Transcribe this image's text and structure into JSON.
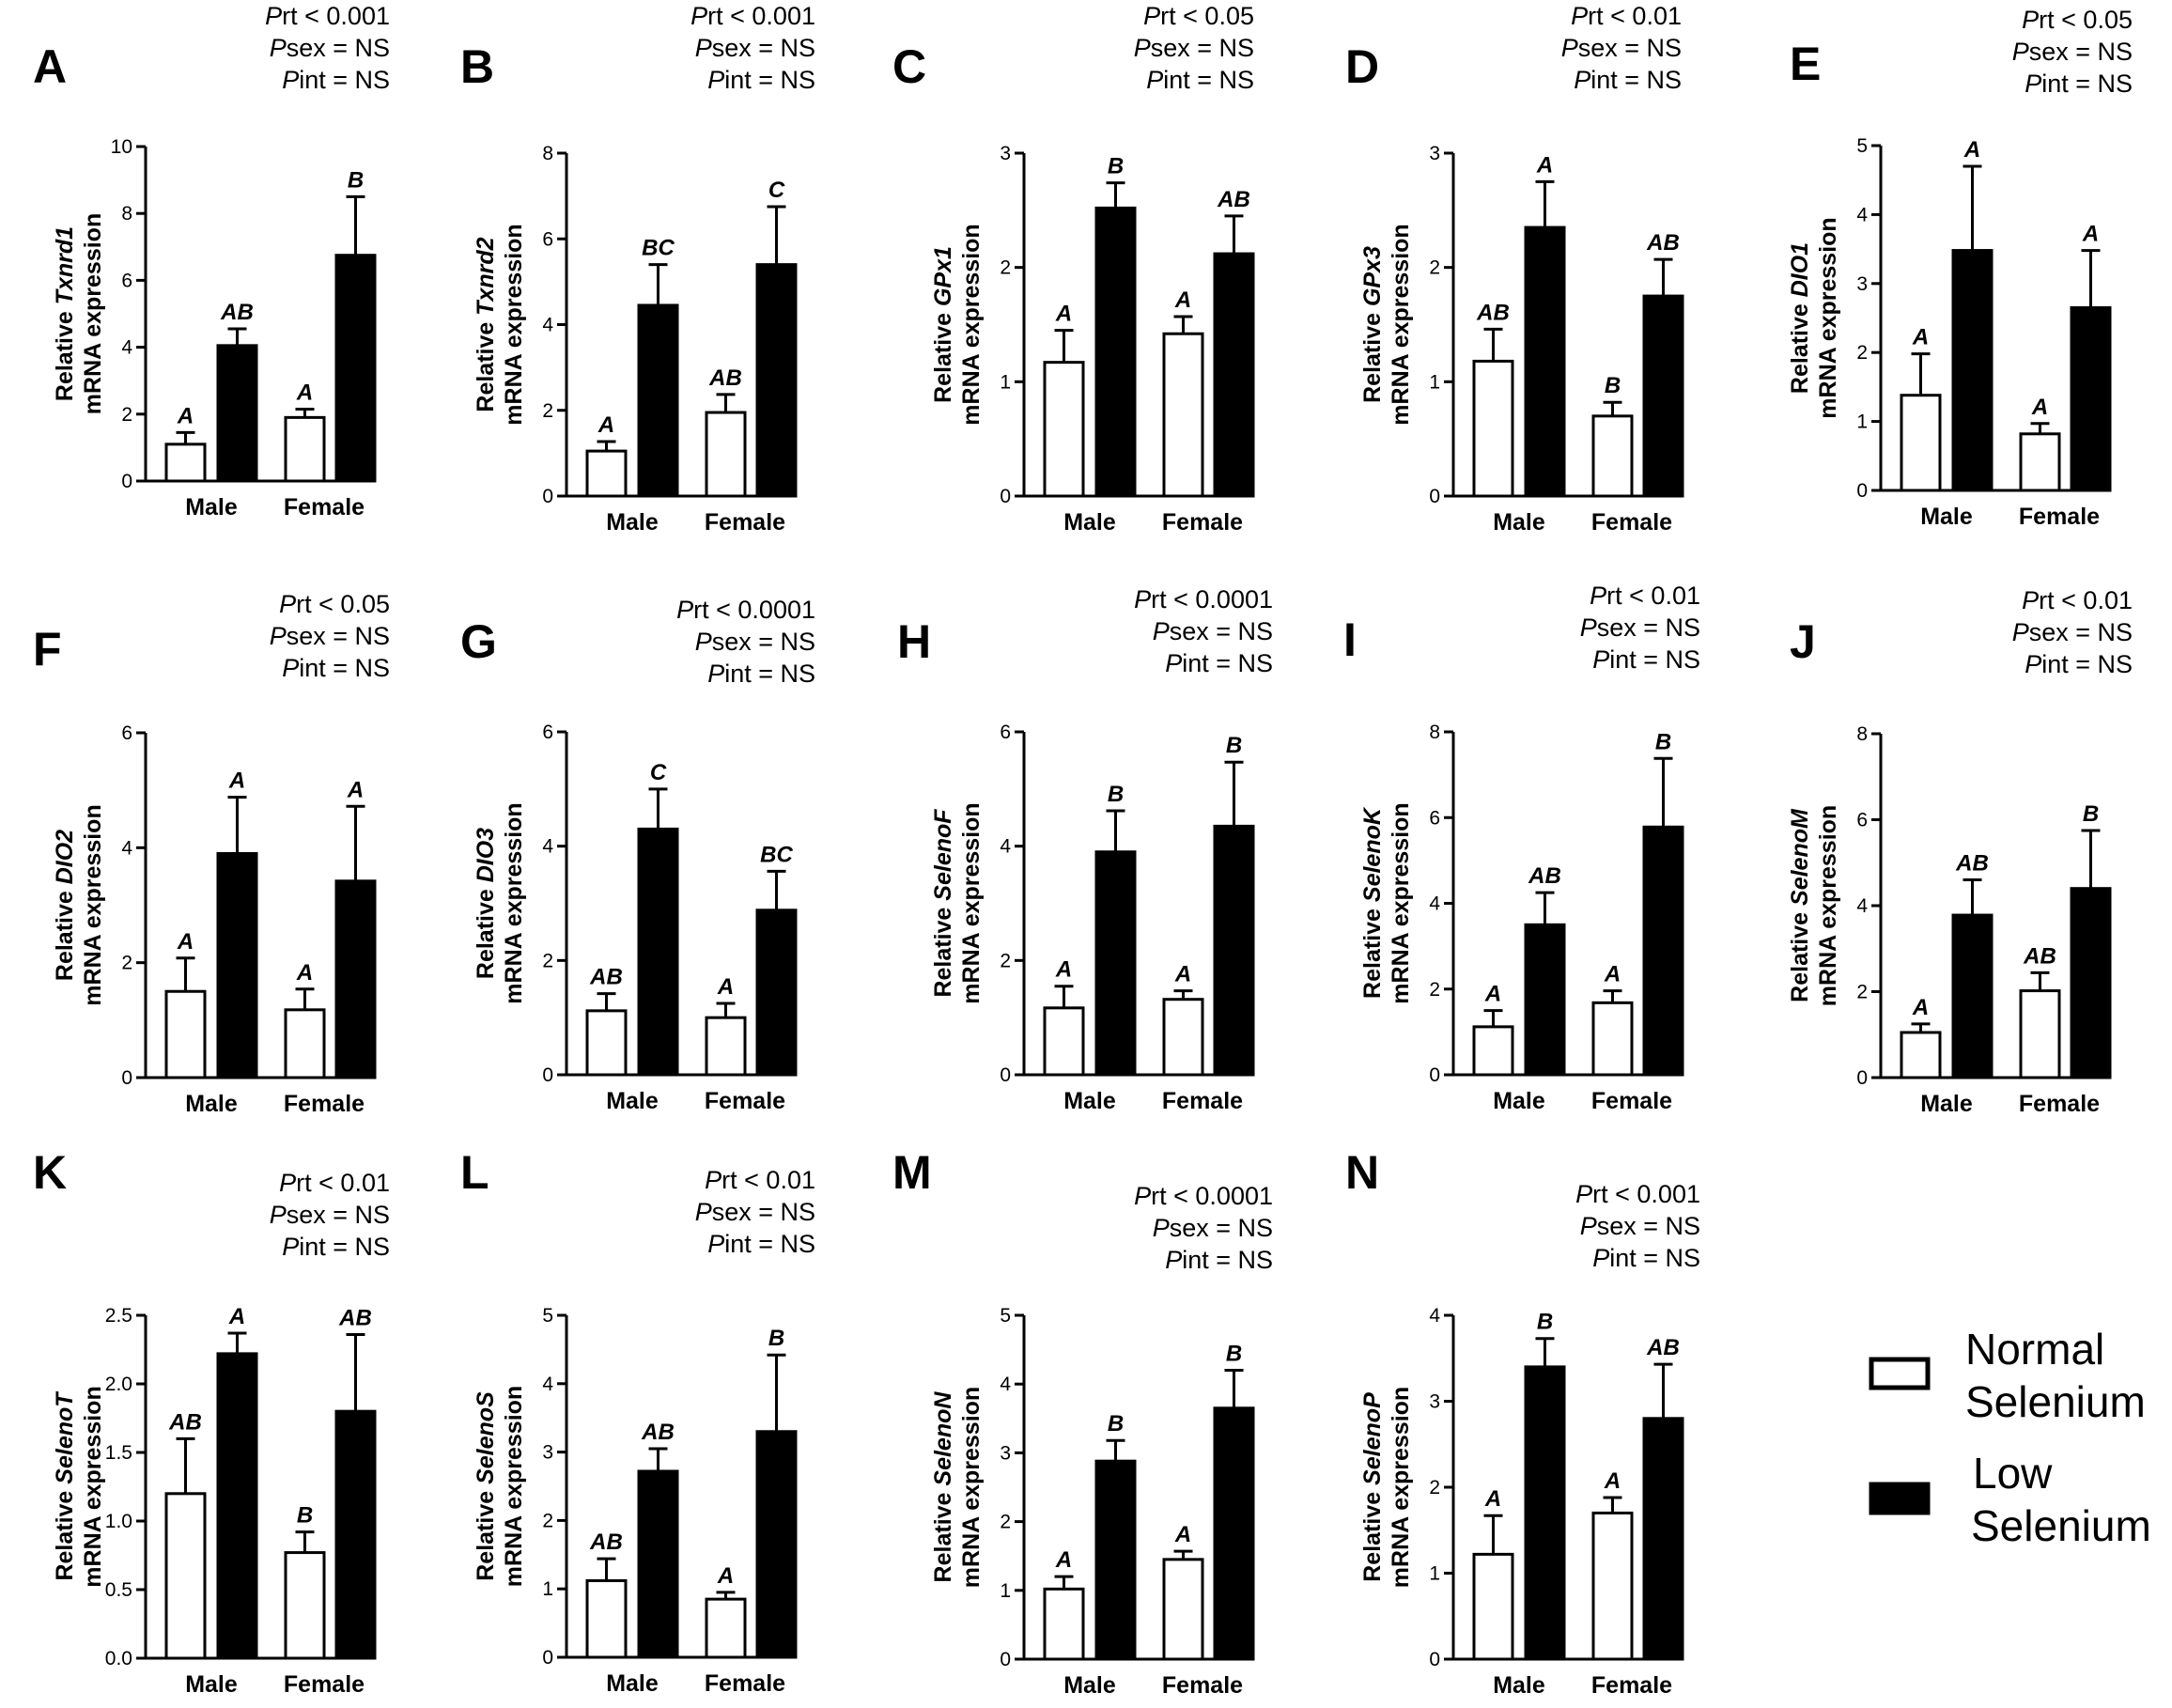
{
  "figure": {
    "legend": [
      {
        "label_line1": "Normal",
        "label_line2": "Selenium",
        "fill": "#ffffff"
      },
      {
        "label_line1": "Low",
        "label_line2": "Selenium",
        "fill": "#000000"
      }
    ],
    "colors": {
      "normal": "#ffffff",
      "low": "#000000",
      "stroke": "#000000"
    }
  },
  "chart_data": [
    {
      "type": "bar",
      "panel": "A",
      "gene": "Txnrd1",
      "ylabel_prefix": "Relative ",
      "ylabel_line2": "mRNA expression",
      "categories": [
        "Male",
        "Female"
      ],
      "ylim": [
        0,
        10
      ],
      "yticks": [
        "0",
        "2",
        "4",
        "6",
        "8",
        "10"
      ],
      "series": [
        {
          "name": "Normal Selenium",
          "values": [
            1.1,
            1.9
          ],
          "errors": [
            0.35,
            0.25
          ],
          "labels": [
            "A",
            "A"
          ]
        },
        {
          "name": "Low Selenium",
          "values": [
            4.05,
            6.75
          ],
          "errors": [
            0.5,
            1.75
          ],
          "labels": [
            "AB",
            "B"
          ]
        }
      ],
      "stats": {
        "trt_value": "rt < 0.001",
        "sex_value": "sex = NS",
        "int_value": "int = NS"
      }
    },
    {
      "type": "bar",
      "panel": "B",
      "gene": "Txnrd2",
      "ylabel_prefix": "Relative ",
      "ylabel_line2": "mRNA expression",
      "categories": [
        "Male",
        "Female"
      ],
      "ylim": [
        0,
        8
      ],
      "yticks": [
        "0",
        "2",
        "4",
        "6",
        "8"
      ],
      "series": [
        {
          "name": "Normal Selenium",
          "values": [
            1.05,
            1.95
          ],
          "errors": [
            0.22,
            0.42
          ],
          "labels": [
            "A",
            "AB"
          ]
        },
        {
          "name": "Low Selenium",
          "values": [
            4.45,
            5.4
          ],
          "errors": [
            0.95,
            1.35
          ],
          "labels": [
            "BC",
            "C"
          ]
        }
      ],
      "stats": {
        "trt_value": "rt < 0.001",
        "sex_value": "sex = NS",
        "int_value": "int = NS"
      }
    },
    {
      "type": "bar",
      "panel": "C",
      "gene": "GPx1",
      "ylabel_prefix": "Relative ",
      "ylabel_line2": "mRNA expression",
      "categories": [
        "Male",
        "Female"
      ],
      "ylim": [
        0,
        3
      ],
      "yticks": [
        "0",
        "1",
        "2",
        "3"
      ],
      "series": [
        {
          "name": "Normal Selenium",
          "values": [
            1.17,
            1.42
          ],
          "errors": [
            0.28,
            0.15
          ],
          "labels": [
            "A",
            "A"
          ]
        },
        {
          "name": "Low Selenium",
          "values": [
            2.52,
            2.12
          ],
          "errors": [
            0.22,
            0.33
          ],
          "labels": [
            "B",
            "AB"
          ]
        }
      ],
      "stats": {
        "trt_value": "rt < 0.05",
        "sex_value": "sex = NS",
        "int_value": "int = NS"
      }
    },
    {
      "type": "bar",
      "panel": "D",
      "gene": "GPx3",
      "ylabel_prefix": "Relative ",
      "ylabel_line2": "mRNA expression",
      "categories": [
        "Male",
        "Female"
      ],
      "ylim": [
        0,
        3
      ],
      "yticks": [
        "0",
        "1",
        "2",
        "3"
      ],
      "series": [
        {
          "name": "Normal Selenium",
          "values": [
            1.18,
            0.7
          ],
          "errors": [
            0.28,
            0.12
          ],
          "labels": [
            "AB",
            "B"
          ]
        },
        {
          "name": "Low Selenium",
          "values": [
            2.35,
            1.75
          ],
          "errors": [
            0.4,
            0.32
          ],
          "labels": [
            "A",
            "AB"
          ]
        }
      ],
      "stats": {
        "trt_value": "rt < 0.01",
        "sex_value": "sex = NS",
        "int_value": "int = NS"
      }
    },
    {
      "type": "bar",
      "panel": "E",
      "gene": "DIO1",
      "ylabel_prefix": "Relative ",
      "ylabel_line2": "mRNA expression",
      "categories": [
        "Male",
        "Female"
      ],
      "ylim": [
        0,
        5
      ],
      "yticks": [
        "0",
        "1",
        "2",
        "3",
        "4",
        "5"
      ],
      "series": [
        {
          "name": "Normal Selenium",
          "values": [
            1.38,
            0.82
          ],
          "errors": [
            0.6,
            0.15
          ],
          "labels": [
            "A",
            "A"
          ]
        },
        {
          "name": "Low Selenium",
          "values": [
            3.48,
            2.65
          ],
          "errors": [
            1.22,
            0.83
          ],
          "labels": [
            "A",
            "A"
          ]
        }
      ],
      "stats": {
        "trt_value": "rt < 0.05",
        "sex_value": "sex = NS",
        "int_value": "int = NS"
      }
    },
    {
      "type": "bar",
      "panel": "F",
      "gene": "DIO2",
      "ylabel_prefix": "Relative ",
      "ylabel_line2": "mRNA expression",
      "categories": [
        "Male",
        "Female"
      ],
      "ylim": [
        0,
        6
      ],
      "yticks": [
        "0",
        "2",
        "4",
        "6"
      ],
      "series": [
        {
          "name": "Normal Selenium",
          "values": [
            1.5,
            1.18
          ],
          "errors": [
            0.58,
            0.36
          ],
          "labels": [
            "A",
            "A"
          ]
        },
        {
          "name": "Low Selenium",
          "values": [
            3.9,
            3.42
          ],
          "errors": [
            0.98,
            1.3
          ],
          "labels": [
            "A",
            "A"
          ]
        }
      ],
      "stats": {
        "trt_value": "rt < 0.05",
        "sex_value": "sex = NS",
        "int_value": "int = NS"
      }
    },
    {
      "type": "bar",
      "panel": "G",
      "gene": "DIO3",
      "ylabel_prefix": "Relative ",
      "ylabel_line2": "mRNA expression",
      "categories": [
        "Male",
        "Female"
      ],
      "ylim": [
        0,
        6
      ],
      "yticks": [
        "0",
        "2",
        "4",
        "6"
      ],
      "series": [
        {
          "name": "Normal Selenium",
          "values": [
            1.12,
            1.0
          ],
          "errors": [
            0.3,
            0.25
          ],
          "labels": [
            "AB",
            "A"
          ]
        },
        {
          "name": "Low Selenium",
          "values": [
            4.3,
            2.88
          ],
          "errors": [
            0.7,
            0.68
          ],
          "labels": [
            "C",
            "BC"
          ]
        }
      ],
      "stats": {
        "trt_value": "rt < 0.0001",
        "sex_value": "sex = NS",
        "int_value": "int = NS"
      }
    },
    {
      "type": "bar",
      "panel": "H",
      "gene": "SelenoF",
      "ylabel_prefix": "Relative ",
      "ylabel_line2": "mRNA expression",
      "categories": [
        "Male",
        "Female"
      ],
      "ylim": [
        0,
        6
      ],
      "yticks": [
        "0",
        "2",
        "4",
        "6"
      ],
      "series": [
        {
          "name": "Normal Selenium",
          "values": [
            1.17,
            1.32
          ],
          "errors": [
            0.38,
            0.15
          ],
          "labels": [
            "A",
            "A"
          ]
        },
        {
          "name": "Low Selenium",
          "values": [
            3.9,
            4.35
          ],
          "errors": [
            0.72,
            1.12
          ],
          "labels": [
            "B",
            "B"
          ]
        }
      ],
      "stats": {
        "trt_value": "rt < 0.0001",
        "sex_value": "sex = NS",
        "int_value": "int = NS"
      }
    },
    {
      "type": "bar",
      "panel": "I",
      "gene": "SelenoK",
      "ylabel_prefix": "Relative ",
      "ylabel_line2": "mRNA expression",
      "categories": [
        "Male",
        "Female"
      ],
      "ylim": [
        0,
        8
      ],
      "yticks": [
        "0",
        "2",
        "4",
        "6",
        "8"
      ],
      "series": [
        {
          "name": "Normal Selenium",
          "values": [
            1.12,
            1.68
          ],
          "errors": [
            0.38,
            0.28
          ],
          "labels": [
            "A",
            "A"
          ]
        },
        {
          "name": "Low Selenium",
          "values": [
            3.5,
            5.78
          ],
          "errors": [
            0.75,
            1.6
          ],
          "labels": [
            "AB",
            "B"
          ]
        }
      ],
      "stats": {
        "trt_value": "rt < 0.01",
        "sex_value": "sex = NS",
        "int_value": "int = NS"
      }
    },
    {
      "type": "bar",
      "panel": "J",
      "gene": "SelenoM",
      "ylabel_prefix": "Relative ",
      "ylabel_line2": "mRNA expression",
      "categories": [
        "Male",
        "Female"
      ],
      "ylim": [
        0,
        8
      ],
      "yticks": [
        "0",
        "2",
        "4",
        "6",
        "8"
      ],
      "series": [
        {
          "name": "Normal Selenium",
          "values": [
            1.05,
            2.02
          ],
          "errors": [
            0.2,
            0.42
          ],
          "labels": [
            "A",
            "AB"
          ]
        },
        {
          "name": "Low Selenium",
          "values": [
            3.78,
            4.4
          ],
          "errors": [
            0.82,
            1.35
          ],
          "labels": [
            "AB",
            "B"
          ]
        }
      ],
      "stats": {
        "trt_value": "rt < 0.01",
        "sex_value": "sex = NS",
        "int_value": "int = NS"
      }
    },
    {
      "type": "bar",
      "panel": "K",
      "gene": "SelenoT",
      "ylabel_prefix": "Relative ",
      "ylabel_line2": "mRNA expression",
      "categories": [
        "Male",
        "Female"
      ],
      "ylim": [
        0,
        2.5
      ],
      "yticks": [
        "0.0",
        "0.5",
        "1.0",
        "1.5",
        "2.0",
        "2.5"
      ],
      "series": [
        {
          "name": "Normal Selenium",
          "values": [
            1.2,
            0.77
          ],
          "errors": [
            0.4,
            0.15
          ],
          "labels": [
            "AB",
            "B"
          ]
        },
        {
          "name": "Low Selenium",
          "values": [
            2.22,
            1.8
          ],
          "errors": [
            0.15,
            0.56
          ],
          "labels": [
            "A",
            "AB"
          ]
        }
      ],
      "stats": {
        "trt_value": "rt < 0.01",
        "sex_value": "sex = NS",
        "int_value": "int = NS"
      }
    },
    {
      "type": "bar",
      "panel": "L",
      "gene": "SelenoS",
      "ylabel_prefix": "Relative ",
      "ylabel_line2": "mRNA expression",
      "categories": [
        "Male",
        "Female"
      ],
      "ylim": [
        0,
        5
      ],
      "yticks": [
        "0",
        "1",
        "2",
        "3",
        "4",
        "5"
      ],
      "series": [
        {
          "name": "Normal Selenium",
          "values": [
            1.12,
            0.85
          ],
          "errors": [
            0.32,
            0.1
          ],
          "labels": [
            "AB",
            "A"
          ]
        },
        {
          "name": "Low Selenium",
          "values": [
            2.72,
            3.3
          ],
          "errors": [
            0.33,
            1.12
          ],
          "labels": [
            "AB",
            "B"
          ]
        }
      ],
      "stats": {
        "trt_value": "rt < 0.01",
        "sex_value": "sex = NS",
        "int_value": "int = NS"
      }
    },
    {
      "type": "bar",
      "panel": "M",
      "gene": "SelenoN",
      "ylabel_prefix": "Relative ",
      "ylabel_line2": "mRNA expression",
      "categories": [
        "Male",
        "Female"
      ],
      "ylim": [
        0,
        5
      ],
      "yticks": [
        "0",
        "1",
        "2",
        "3",
        "4",
        "5"
      ],
      "series": [
        {
          "name": "Normal Selenium",
          "values": [
            1.02,
            1.45
          ],
          "errors": [
            0.18,
            0.12
          ],
          "labels": [
            "A",
            "A"
          ]
        },
        {
          "name": "Low Selenium",
          "values": [
            2.88,
            3.65
          ],
          "errors": [
            0.3,
            0.55
          ],
          "labels": [
            "B",
            "B"
          ]
        }
      ],
      "stats": {
        "trt_value": "rt < 0.0001",
        "sex_value": "sex = NS",
        "int_value": "int = NS"
      }
    },
    {
      "type": "bar",
      "panel": "N",
      "gene": "SelenoP",
      "ylabel_prefix": "Relative ",
      "ylabel_line2": "mRNA expression",
      "categories": [
        "Male",
        "Female"
      ],
      "ylim": [
        0,
        4
      ],
      "yticks": [
        "0",
        "1",
        "2",
        "3",
        "4"
      ],
      "series": [
        {
          "name": "Normal Selenium",
          "values": [
            1.22,
            1.7
          ],
          "errors": [
            0.45,
            0.18
          ],
          "labels": [
            "A",
            "A"
          ]
        },
        {
          "name": "Low Selenium",
          "values": [
            3.4,
            2.8
          ],
          "errors": [
            0.33,
            0.63
          ],
          "labels": [
            "B",
            "AB"
          ]
        }
      ],
      "stats": {
        "trt_value": "rt < 0.001",
        "sex_value": "sex = NS",
        "int_value": "int = NS"
      }
    }
  ]
}
